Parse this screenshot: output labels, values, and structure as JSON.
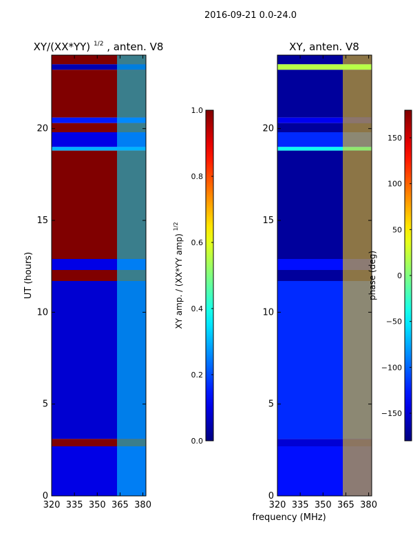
{
  "figure": {
    "suptitle": "2016-09-21 0.0-24.0",
    "shared_xlabel": "frequency (MHz)"
  },
  "chart_data": [
    {
      "type": "heatmap",
      "title": "XY/(XX*YY)",
      "title_exponent": "1/2",
      "title_suffix": ", anten. V8",
      "xlabel": "",
      "ylabel": "UT (hours)",
      "xlim": [
        320,
        382
      ],
      "ylim": [
        0,
        24
      ],
      "xticks": [
        320,
        335,
        350,
        365,
        380
      ],
      "yticks": [
        0,
        5,
        10,
        15,
        20
      ],
      "colormap": "jet",
      "colorbar": {
        "label": "XY amp. / (XX*YY amp)",
        "label_exponent": "1/2",
        "range": [
          0.0,
          1.0
        ],
        "ticks": [
          "0.0",
          "0.2",
          "0.4",
          "0.6",
          "0.8",
          "1.0"
        ],
        "tick_values": [
          0.0,
          0.2,
          0.4,
          0.6,
          0.8,
          1.0
        ]
      },
      "bands": [
        {
          "y0": 23.5,
          "y1": 24.0,
          "value": 1.0
        },
        {
          "y0": 23.2,
          "y1": 23.5,
          "value": 0.05
        },
        {
          "y0": 20.6,
          "y1": 23.2,
          "value": 1.0
        },
        {
          "y0": 20.3,
          "y1": 20.6,
          "value": 0.15
        },
        {
          "y0": 19.8,
          "y1": 20.3,
          "value": 1.0
        },
        {
          "y0": 19.0,
          "y1": 19.8,
          "value": 0.1
        },
        {
          "y0": 18.8,
          "y1": 19.0,
          "value": 0.3
        },
        {
          "y0": 12.9,
          "y1": 18.8,
          "value": 1.0
        },
        {
          "y0": 12.3,
          "y1": 12.9,
          "value": 0.1
        },
        {
          "y0": 11.7,
          "y1": 12.3,
          "value": 1.0
        },
        {
          "y0": 3.1,
          "y1": 11.7,
          "value": 0.08
        },
        {
          "y0": 2.7,
          "y1": 3.1,
          "value": 1.0
        },
        {
          "y0": 0.0,
          "y1": 2.7,
          "value": 0.1
        }
      ],
      "hot_band": {
        "x0": 363,
        "x1": 382,
        "value": 0.35
      }
    },
    {
      "type": "heatmap",
      "title": "XY, anten. V8",
      "xlabel": "frequency (MHz)",
      "ylabel": "",
      "xlim": [
        320,
        382
      ],
      "ylim": [
        0,
        24
      ],
      "xticks": [
        320,
        335,
        350,
        365,
        380
      ],
      "yticks": [
        0,
        5,
        10,
        15,
        20
      ],
      "colormap": "jet",
      "colorbar": {
        "label": "phase (deg)",
        "range": [
          -180,
          180
        ],
        "ticks": [
          "150",
          "100",
          "50",
          "0",
          "−50",
          "−100",
          "−150"
        ],
        "tick_values": [
          150,
          100,
          50,
          0,
          -50,
          -100,
          -150
        ]
      },
      "bands": [
        {
          "y0": 23.5,
          "y1": 24.0,
          "value": -170
        },
        {
          "y0": 23.2,
          "y1": 23.5,
          "value": 20
        },
        {
          "y0": 20.6,
          "y1": 23.2,
          "value": -170
        },
        {
          "y0": 20.3,
          "y1": 20.6,
          "value": -140
        },
        {
          "y0": 19.8,
          "y1": 20.3,
          "value": -170
        },
        {
          "y0": 19.0,
          "y1": 19.8,
          "value": -120
        },
        {
          "y0": 18.8,
          "y1": 19.0,
          "value": -40
        },
        {
          "y0": 12.9,
          "y1": 18.8,
          "value": -170
        },
        {
          "y0": 12.3,
          "y1": 12.9,
          "value": -130
        },
        {
          "y0": 11.7,
          "y1": 12.3,
          "value": -170
        },
        {
          "y0": 3.1,
          "y1": 11.7,
          "value": -120
        },
        {
          "y0": 2.7,
          "y1": 3.1,
          "value": -150
        },
        {
          "y0": 0.0,
          "y1": 2.7,
          "value": -130
        }
      ],
      "hot_band": {
        "x0": 363,
        "x1": 382,
        "value": 60
      }
    }
  ]
}
